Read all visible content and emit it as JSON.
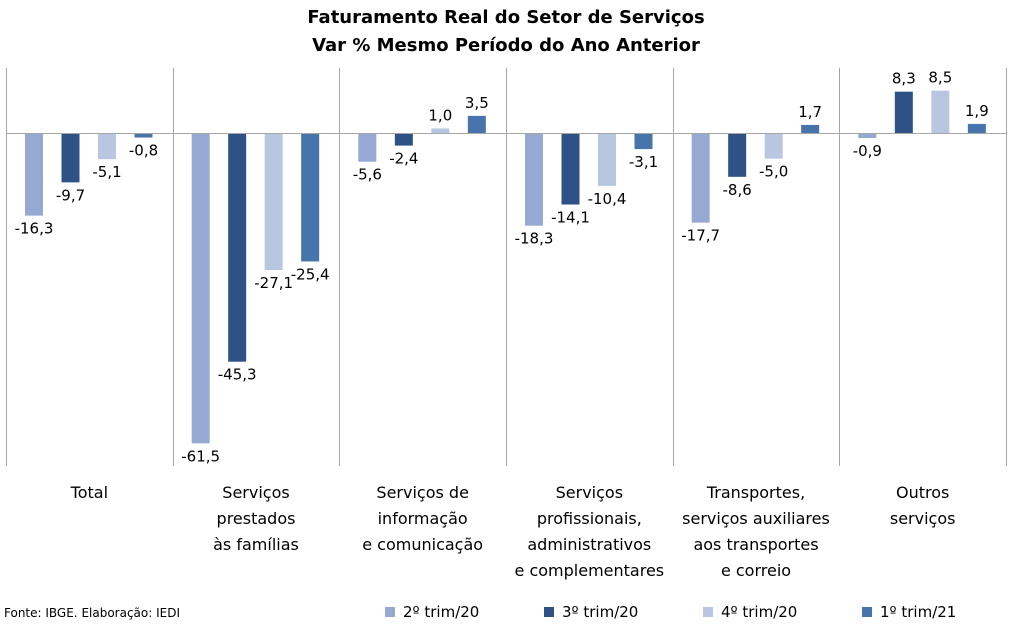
{
  "title": "Faturamento Real do Setor de Serviços",
  "subtitle": "Var % Mesmo Período do Ano Anterior",
  "source": "Fonte: IBGE. Elaboração: IEDI",
  "colors": {
    "s1": "#95a9d3",
    "s2": "#2e5286",
    "s3": "#b8c6e2",
    "s4": "#4774aa",
    "grid": "#a6a6a6"
  },
  "chart_data": {
    "type": "bar",
    "title": "Faturamento Real do Setor de Serviços",
    "subtitle": "Var % Mesmo Período do Ano Anterior",
    "categories": [
      [
        "Total"
      ],
      [
        "Serviços",
        "prestados",
        "às famílias"
      ],
      [
        "Serviços de",
        "informação",
        "e comunicação"
      ],
      [
        "Serviços",
        "profissionais,",
        "administrativos",
        "e complementares"
      ],
      [
        "Transportes,",
        "serviços auxiliares",
        "aos transportes",
        "e correio"
      ],
      [
        "Outros",
        "serviços"
      ]
    ],
    "series": [
      {
        "name": "2º trim/20",
        "values": [
          -16.3,
          -61.5,
          -5.6,
          -18.3,
          -17.7,
          -0.9
        ],
        "labels": [
          "-16,3",
          "-61,5",
          "-5,6",
          "-18,3",
          "-17,7",
          "-0,9"
        ]
      },
      {
        "name": "3º trim/20",
        "values": [
          -9.7,
          -45.3,
          -2.4,
          -14.1,
          -8.6,
          8.3
        ],
        "labels": [
          "-9,7",
          "-45,3",
          "-2,4",
          "-14,1",
          "-8,6",
          "8,3"
        ]
      },
      {
        "name": "4º trim/20",
        "values": [
          -5.1,
          -27.1,
          1.0,
          -10.4,
          -5.0,
          8.5
        ],
        "labels": [
          "-5,1",
          "-27,1",
          "1,0",
          "-10,4",
          "-5,0",
          "8,5"
        ]
      },
      {
        "name": "1º trim/21",
        "values": [
          -0.8,
          -25.4,
          3.5,
          -3.1,
          1.7,
          1.9
        ],
        "labels": [
          "-0,8",
          "-25,4",
          "3,5",
          "-3,1",
          "1,7",
          "1,9"
        ]
      }
    ],
    "ylim": [
      -66,
      13
    ],
    "legend": "bottom"
  }
}
